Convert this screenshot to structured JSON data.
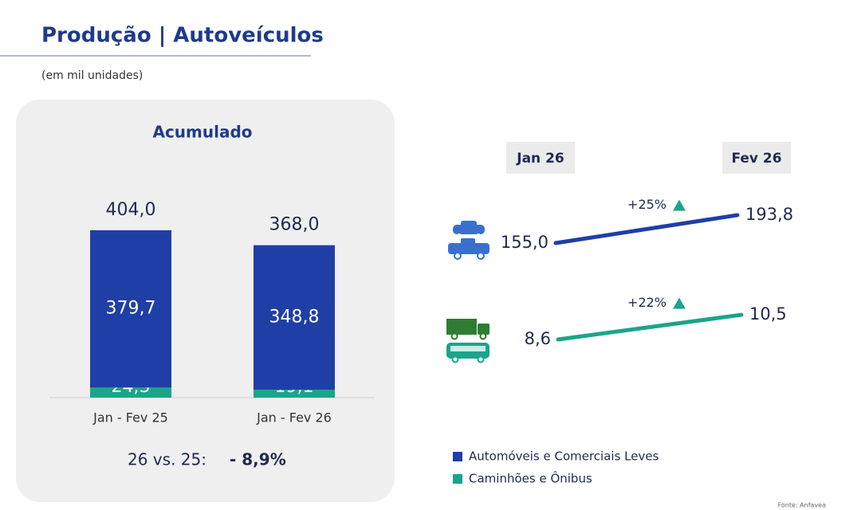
{
  "title": "Produção | Autoveículos",
  "subtitle": "(em mil unidades)",
  "source": "Fonte: Anfavea",
  "chart_data": [
    {
      "type": "bar",
      "stacked": true,
      "title": "Acumulado",
      "categories": [
        "Jan - Fev 25",
        "Jan - Fev 26"
      ],
      "series": [
        {
          "name": "Automóveis e Comerciais Leves",
          "color": "#1f3fa6",
          "values": [
            379.7,
            348.8
          ],
          "value_labels": [
            "379,7",
            "348,8"
          ]
        },
        {
          "name": "Caminhões e Ônibus",
          "color": "#1aa58a",
          "values": [
            24.3,
            19.1
          ],
          "value_labels": [
            "24,3",
            "19,1"
          ]
        }
      ],
      "totals": [
        404.0,
        368.0
      ],
      "total_labels": [
        "404,0",
        "368,0"
      ],
      "comparison": {
        "label": "26 vs. 25:",
        "value": "- 8,9%"
      }
    },
    {
      "type": "line",
      "categories": [
        "Jan 26",
        "Fev 26"
      ],
      "series": [
        {
          "color": "#1f3fa6",
          "values": [
            155.0,
            193.8
          ],
          "value_labels": [
            "155,0",
            "193,8"
          ],
          "change": "+25%"
        },
        {
          "color": "#1aa58a",
          "values": [
            8.6,
            10.5
          ],
          "value_labels": [
            "8,6",
            "10,5"
          ],
          "change": "+22%"
        }
      ]
    }
  ]
}
